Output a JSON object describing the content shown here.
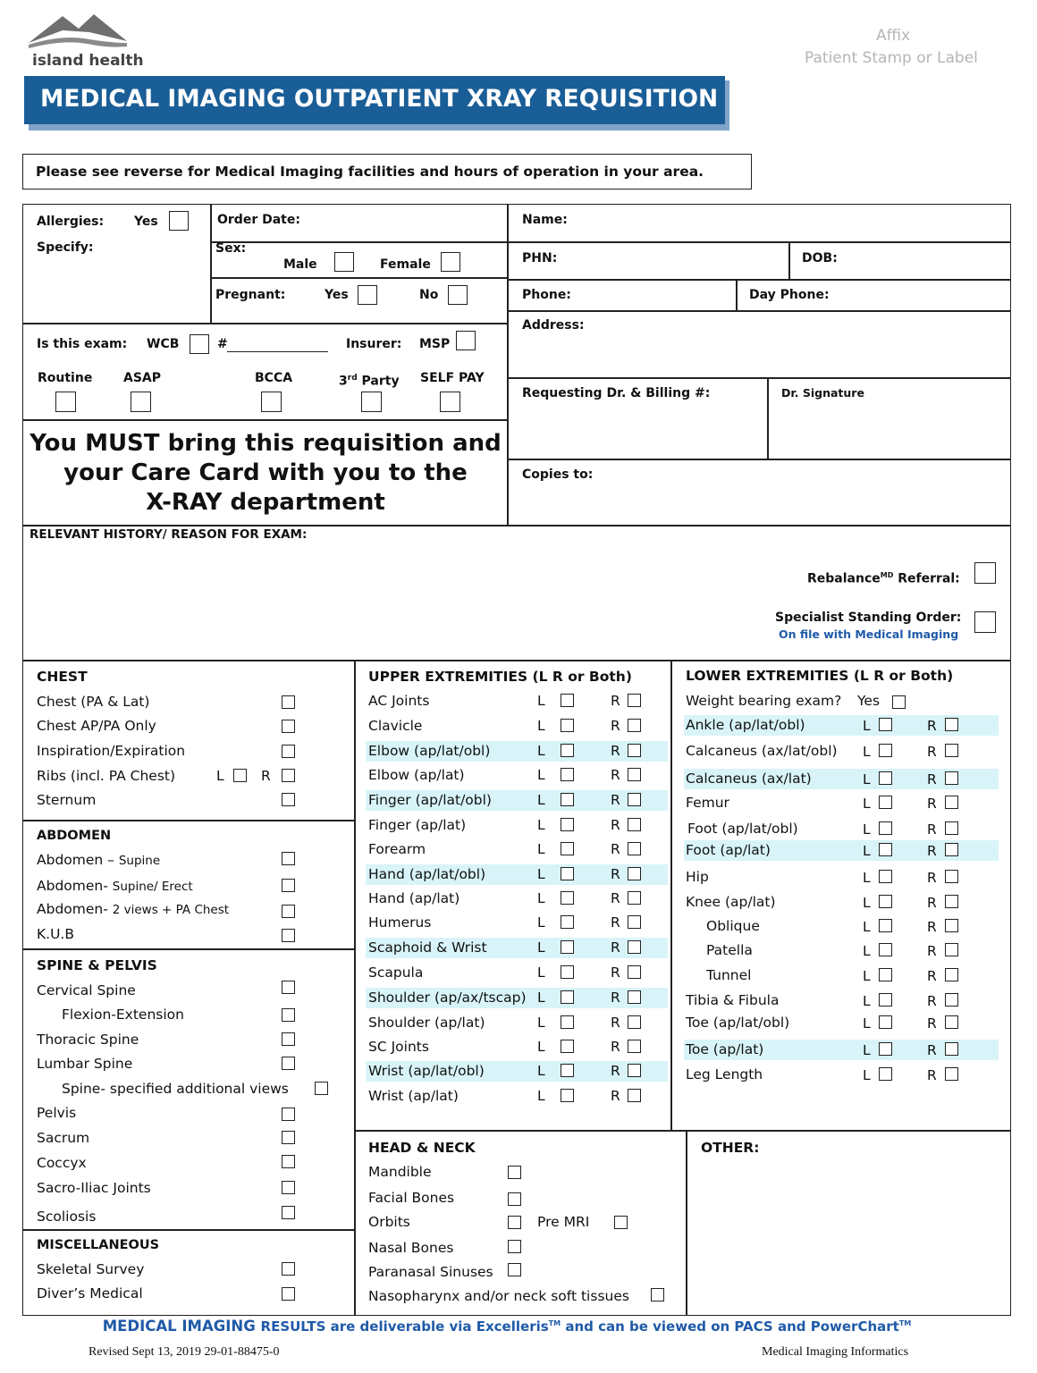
{
  "header": {
    "logo_text": "island health",
    "title": "MEDICAL IMAGING OUTPATIENT XRAY REQUISITION",
    "affix_line1": "Affix",
    "affix_line2": "Patient Stamp or Label",
    "notice": "Please see reverse for Medical Imaging facilities and hours of operation in your area."
  },
  "colors": {
    "title_bg": "#1a5e97",
    "title_shadow": "#7fa4c7",
    "link_blue": "#1f5aa8",
    "highlight": "#d8f4f8"
  },
  "patient": {
    "allergies": "Allergies:",
    "yes": "Yes",
    "specify": "Specify:",
    "order_date": "Order Date:",
    "sex": "Sex:",
    "male": "Male",
    "female": "Female",
    "pregnant": "Pregnant:",
    "no": "No",
    "name": "Name:",
    "phn": "PHN:",
    "dob": "DOB:",
    "phone": "Phone:",
    "day_phone": "Day Phone:",
    "address": "Address:",
    "is_exam": "Is this exam:",
    "wcb": "WCB",
    "hash": "#",
    "insurer": "Insurer:",
    "msp": "MSP",
    "routine": "Routine",
    "asap": "ASAP",
    "bcca": "BCCA",
    "third_party_num": "3",
    "third_party_sup": "rd",
    "third_party_word": "Party",
    "self_pay": "SELF PAY",
    "requesting_dr": "Requesting Dr.  & Billing #:",
    "dr_signature": "Dr. Signature",
    "copies_to": "Copies to:",
    "must_line1": "You MUST bring this requisition and",
    "must_line2": "your Care Card with you to the",
    "must_line3": "X-RAY department",
    "relevant_history": "RELEVANT HISTORY/ REASON FOR EXAM:",
    "rebalance": "Rebalance",
    "rebalance_sup": "MD",
    "referral": " Referral:",
    "specialist": "Specialist Standing Order:",
    "on_file": "On file with Medical Imaging"
  },
  "chest": {
    "title": "CHEST",
    "items": [
      "Chest (PA & Lat)",
      "Chest AP/PA Only",
      "Inspiration/Expiration",
      "Ribs (incl. PA Chest)",
      "Sternum"
    ],
    "ribs_l": "L",
    "ribs_r": "R"
  },
  "abdomen": {
    "title": "ABDOMEN",
    "items": [
      {
        "main": "Abdomen – ",
        "sub": "Supine"
      },
      {
        "main": "Abdomen- ",
        "sub": "Supine/ Erect"
      },
      {
        "main": "Abdomen- ",
        "sub": "2 views + PA Chest"
      },
      {
        "main": "K.U.B",
        "sub": ""
      }
    ]
  },
  "spine": {
    "title": "SPINE & PELVIS",
    "items": [
      "Cervical Spine",
      "Flexion-Extension",
      "Thoracic Spine",
      "Lumbar Spine",
      "Spine- specified additional views",
      "Pelvis",
      "Sacrum",
      "Coccyx",
      "Sacro-Iliac Joints",
      "Scoliosis"
    ]
  },
  "misc": {
    "title": "MISCELLANEOUS",
    "items": [
      "Skeletal Survey",
      "Diver’s Medical"
    ]
  },
  "upper": {
    "title": "UPPER EXTREMITIES (L R or Both)",
    "l": "L",
    "r": "R",
    "items": [
      "AC Joints",
      "Clavicle",
      "Elbow (ap/lat/obl)",
      "Elbow (ap/lat)",
      "Finger (ap/lat/obl)",
      "Finger (ap/lat)",
      "Forearm",
      "Hand (ap/lat/obl)",
      "Hand (ap/lat)",
      "Humerus",
      "Scaphoid & Wrist",
      "Scapula",
      "Shoulder (ap/ax/tscap)",
      "Shoulder (ap/lat)",
      "SC Joints",
      "Wrist (ap/lat/obl)",
      "Wrist (ap/lat)"
    ]
  },
  "lower": {
    "title": "LOWER EXTREMITIES (L R or Both)",
    "weight_bearing": "Weight bearing exam?",
    "wb_yes": "Yes",
    "l": "L",
    "r": "R",
    "items": [
      "Ankle (ap/lat/obl)",
      "Calcaneus (ax/lat/obl)",
      "Calcaneus (ax/lat)",
      "Femur",
      "Foot  (ap/lat/obl)",
      "Foot (ap/lat)",
      "Hip",
      "Knee (ap/lat)",
      "Oblique",
      "Patella",
      "Tunnel",
      "Tibia & Fibula",
      "Toe  (ap/lat/obl)",
      "Toe (ap/lat)",
      "Leg Length"
    ]
  },
  "head": {
    "title": "HEAD & NECK",
    "items": [
      "Mandible",
      "Facial Bones",
      "Orbits",
      "Nasal Bones",
      "Paranasal Sinuses",
      "Nasopharynx and/or neck soft tissues"
    ],
    "pre_mri": "Pre MRI"
  },
  "other": {
    "title": "OTHER:"
  },
  "footer": {
    "results_a": "MEDICAL IMAGING ",
    "results_b": "RESULTS are deliverable via Excelleris",
    "tm1": "TM",
    "results_c": " and can be viewed on PACS and PowerChart",
    "tm2": "TM",
    "revised": "Revised  Sept 13, 2019    29-01-88475-0",
    "dept": "Medical Imaging Informatics"
  }
}
